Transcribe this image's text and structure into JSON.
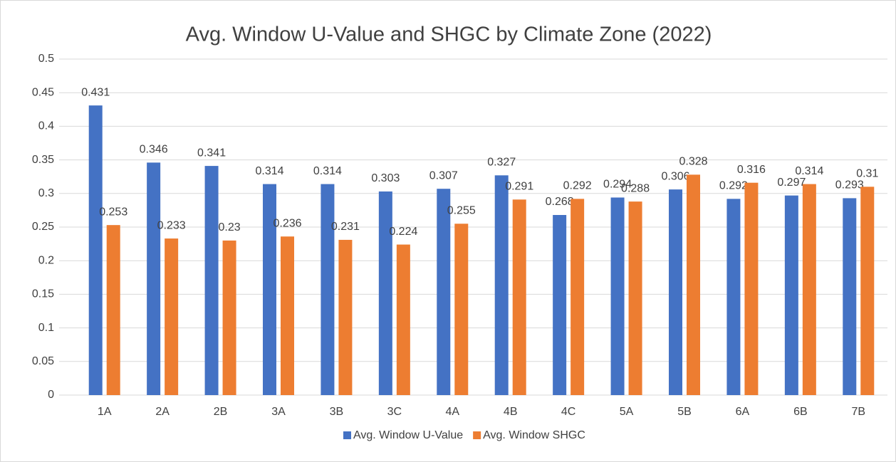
{
  "chart_data": {
    "type": "bar",
    "title": "Avg. Window U-Value and SHGC by Climate Zone (2022)",
    "categories": [
      "1A",
      "2A",
      "2B",
      "3A",
      "3B",
      "3C",
      "4A",
      "4B",
      "4C",
      "5A",
      "5B",
      "6A",
      "6B",
      "7B"
    ],
    "series": [
      {
        "name": "Avg. Window U-Value",
        "color": "#4472c4",
        "values": [
          0.431,
          0.346,
          0.341,
          0.314,
          0.314,
          0.303,
          0.307,
          0.327,
          0.268,
          0.294,
          0.306,
          0.292,
          0.297,
          0.293
        ]
      },
      {
        "name": "Avg. Window SHGC",
        "color": "#ed7d31",
        "values": [
          0.253,
          0.233,
          0.23,
          0.236,
          0.231,
          0.224,
          0.255,
          0.291,
          0.292,
          0.288,
          0.328,
          0.316,
          0.314,
          0.31
        ]
      }
    ],
    "ylim": [
      0,
      0.5
    ],
    "yticks": [
      0,
      0.05,
      0.1,
      0.15,
      0.2,
      0.25,
      0.3,
      0.35,
      0.4,
      0.45,
      0.5
    ],
    "grid": true,
    "legend": "bottom"
  }
}
